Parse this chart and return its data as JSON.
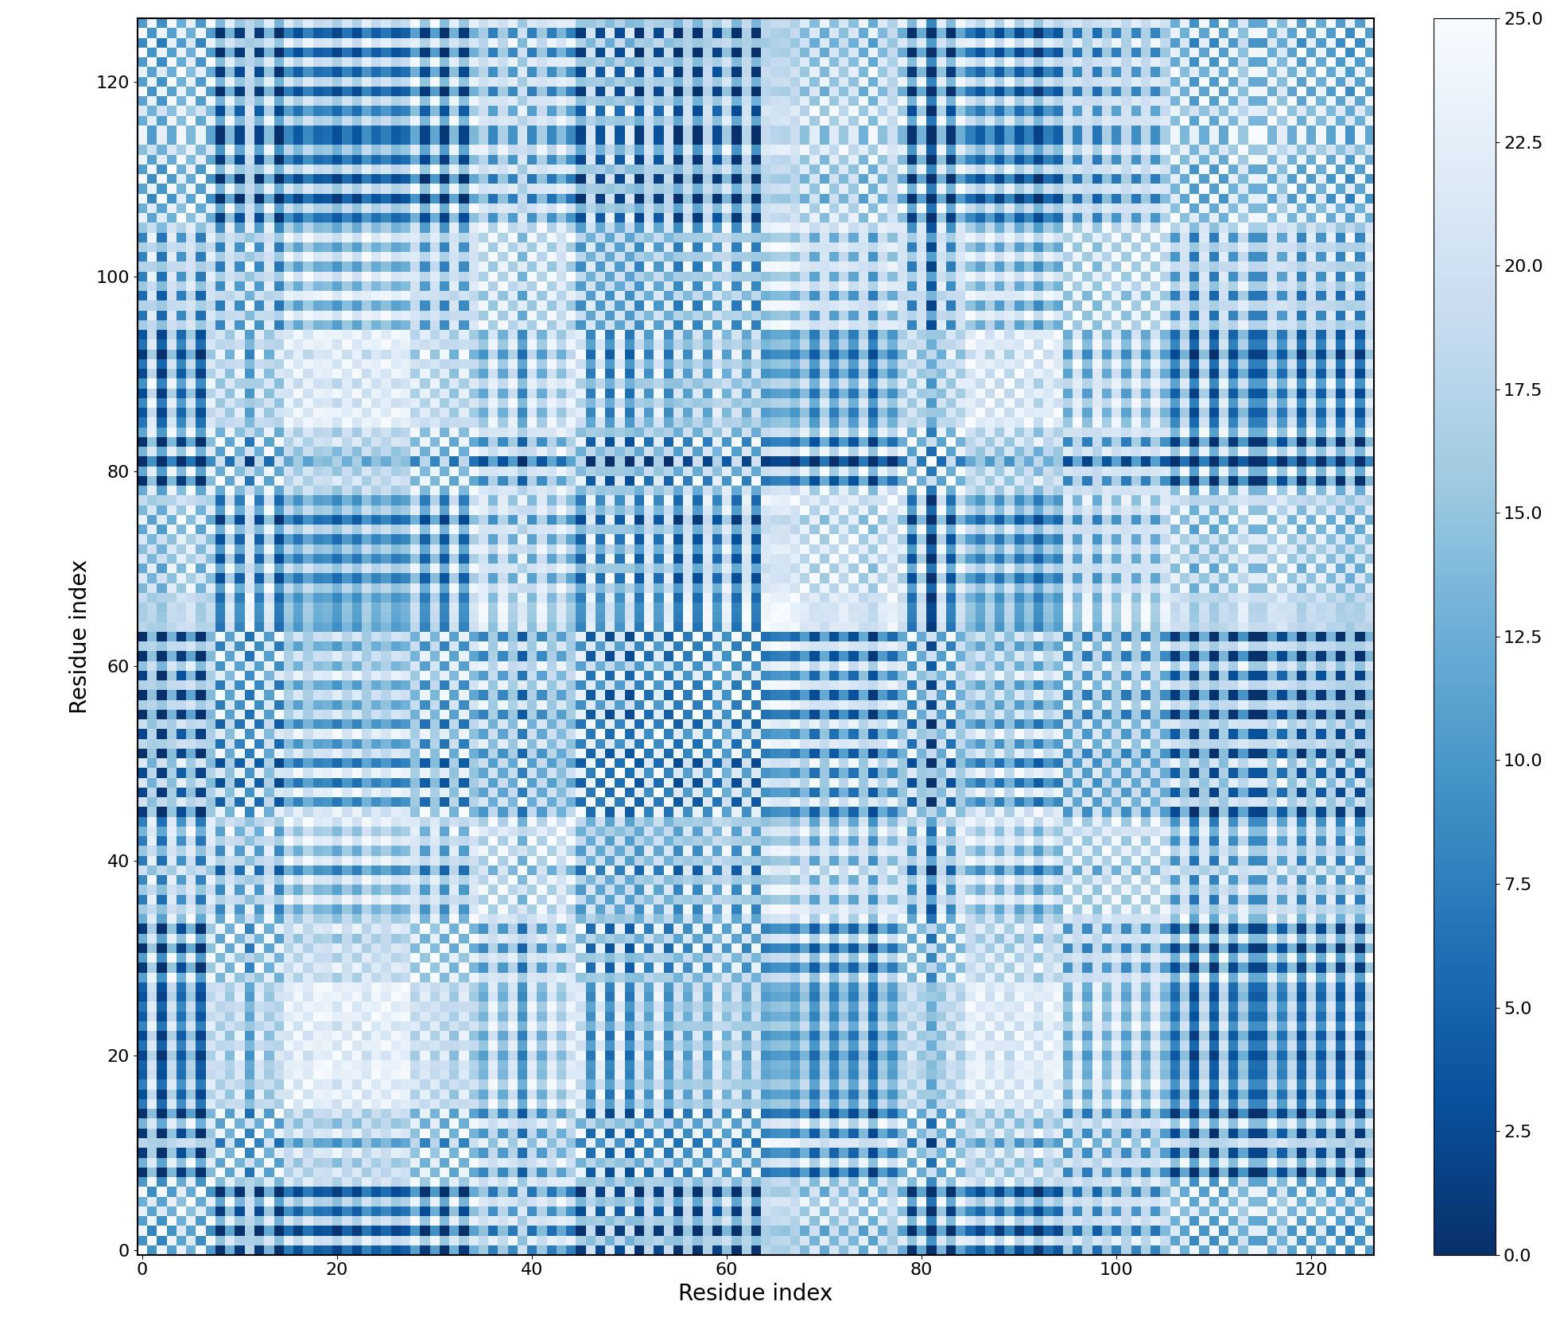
{
  "n_residues": 127,
  "vmin": 0.0,
  "vmax": 25.0,
  "xlabel": "Residue index",
  "ylabel": "Residue index",
  "colorbar_ticks": [
    0.0,
    2.5,
    5.0,
    7.5,
    10.0,
    12.5,
    15.0,
    17.5,
    20.0,
    22.5,
    25.0
  ],
  "cmap": "Blues_r",
  "figsize": [
    19.58,
    16.57
  ],
  "dpi": 100,
  "background_color": "#ffffff",
  "tick_positions": [
    0,
    20,
    40,
    60,
    80,
    100,
    120
  ],
  "tick_fontsize": 16,
  "label_fontsize": 20,
  "cbar_tick_fontsize": 16,
  "seed": 1234
}
